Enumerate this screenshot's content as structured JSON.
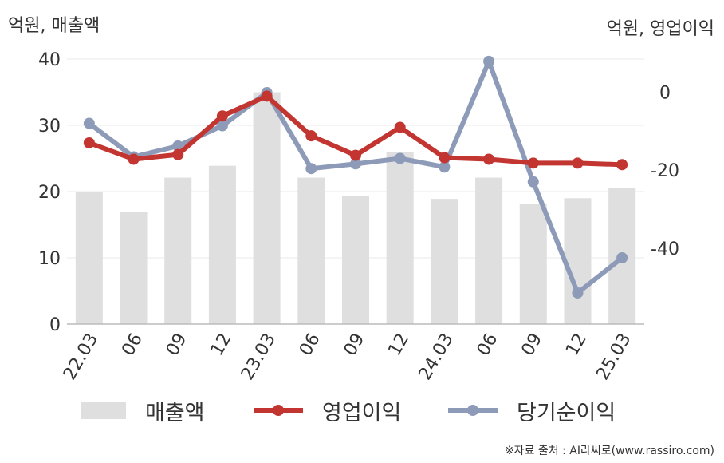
{
  "labels": {
    "left_unit": "억원, 매출액",
    "right_unit": "억원, 영업이익",
    "source": "※자료 출처 : AI라씨로(www.rassiro.com)"
  },
  "chart_data": {
    "type": "bar+line",
    "categories": [
      "22.03",
      "06",
      "09",
      "12",
      "23.03",
      "06",
      "09",
      "12",
      "24.03",
      "06",
      "09",
      "12",
      "25.03"
    ],
    "left_axis": {
      "ticks": [
        0,
        10,
        20,
        30,
        40
      ],
      "range": [
        0,
        40
      ]
    },
    "right_axis": {
      "ticks": [
        0,
        -20,
        -40
      ],
      "range": [
        -59.5,
        8.5
      ]
    },
    "grid": true,
    "legend_position": "bottom",
    "series": [
      {
        "name": "매출액",
        "type": "bar",
        "axis": "left",
        "color": "#dfdfdf",
        "values": [
          20.0,
          16.9,
          22.1,
          23.9,
          35.0,
          22.1,
          19.3,
          26.0,
          18.9,
          22.1,
          18.1,
          19.0,
          20.6
        ]
      },
      {
        "name": "영업이익",
        "type": "line",
        "axis": "right",
        "color": "#c23531",
        "values": [
          -13.0,
          -17.2,
          -16.0,
          -6.1,
          -1.0,
          -11.2,
          -16.2,
          -9.0,
          -16.8,
          -17.2,
          -18.2,
          -18.2,
          -18.6
        ]
      },
      {
        "name": "당기순이익",
        "type": "line",
        "axis": "right",
        "color": "#8e9bb8",
        "values": [
          -8.0,
          -16.6,
          -13.8,
          -8.6,
          -0.1,
          -19.6,
          -18.4,
          -17.0,
          -19.2,
          7.9,
          -23.0,
          -51.5,
          -42.5
        ]
      }
    ]
  }
}
